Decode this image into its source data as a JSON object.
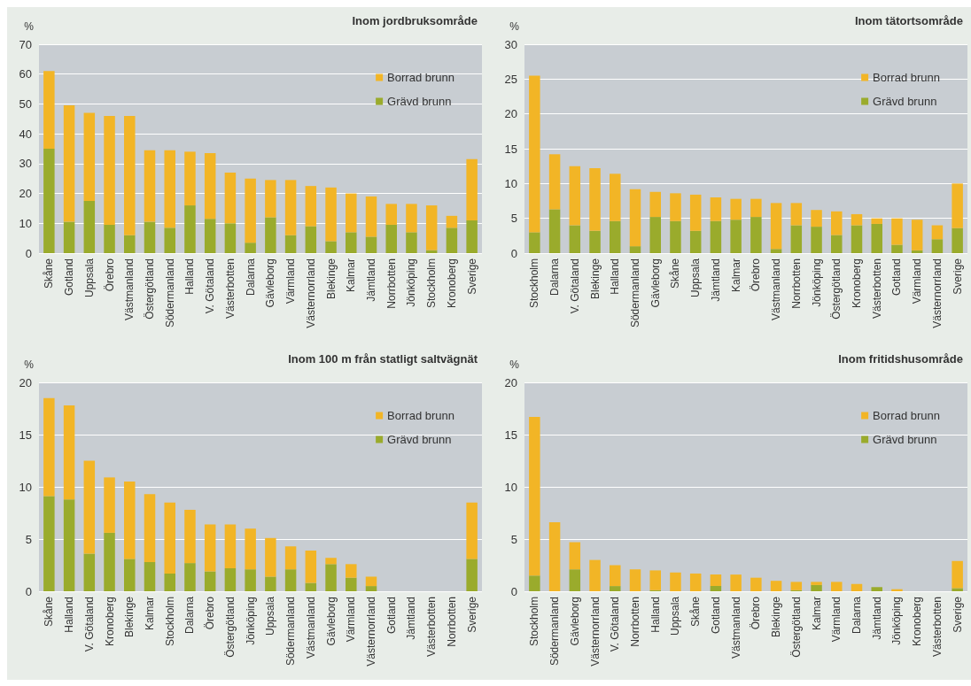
{
  "chart_data": [
    {
      "type": "bar",
      "title": "Inom jordbruksområde",
      "ylabel": "%",
      "stacked": true,
      "grid": "y",
      "legend": "top right",
      "ylim": [
        0,
        70
      ],
      "yticks": [
        0,
        10,
        20,
        30,
        40,
        50,
        60,
        70
      ],
      "categories": [
        "Skåne",
        "Gotland",
        "Uppsala",
        "Örebro",
        "Västmanland",
        "Östergötland",
        "Södermanland",
        "Halland",
        "V. Götaland",
        "Västerbotten",
        "Dalarna",
        "Gävleborg",
        "Värmland",
        "Västernorrland",
        "Blekinge",
        "Kalmar",
        "Jämtland",
        "Norrbotten",
        "Jönköping",
        "Stockholm",
        "Kronoberg",
        "Sverige"
      ],
      "series": [
        {
          "name": "Grävd brunn",
          "color": "#9aab2c",
          "values": [
            35,
            10.5,
            17.5,
            9.5,
            6,
            10.5,
            8.5,
            16,
            11.5,
            10,
            3.5,
            12,
            6,
            9,
            4,
            7,
            5.5,
            9.5,
            7,
            1,
            8.5,
            11
          ]
        },
        {
          "name": "Borrad brunn",
          "color": "#f2b526",
          "values": [
            26,
            39,
            29.5,
            36.5,
            40,
            24,
            26,
            18,
            22,
            17,
            21.5,
            12.5,
            18.5,
            13.5,
            18,
            13,
            13.5,
            7,
            9.5,
            15,
            4,
            20.5
          ]
        }
      ]
    },
    {
      "type": "bar",
      "title": "Inom tätortsområde",
      "ylabel": "%",
      "stacked": true,
      "grid": "y",
      "legend": "top right",
      "ylim": [
        0,
        30
      ],
      "yticks": [
        0,
        5,
        10,
        15,
        20,
        25,
        30
      ],
      "categories": [
        "Stockholm",
        "Dalarna",
        "V. Götaland",
        "Blekinge",
        "Halland",
        "Södermanland",
        "Gävleborg",
        "Skåne",
        "Uppsala",
        "Jämtland",
        "Kalmar",
        "Örebro",
        "Västmanland",
        "Norrbotten",
        "Jönköping",
        "Östergötland",
        "Kronoberg",
        "Västerbotten",
        "Gotland",
        "Värmland",
        "Västernorrland",
        "Sverige"
      ],
      "series": [
        {
          "name": "Grävd brunn",
          "color": "#9aab2c",
          "values": [
            3,
            6.3,
            4,
            3.2,
            4.6,
            1,
            5.2,
            4.6,
            3.2,
            4.6,
            4.8,
            5.2,
            0.6,
            4,
            3.8,
            2.6,
            4,
            4.2,
            1.2,
            0.4,
            2,
            3.6
          ]
        },
        {
          "name": "Borrad brunn",
          "color": "#f2b526",
          "values": [
            22.5,
            7.9,
            8.5,
            9,
            6.8,
            8.2,
            3.6,
            4,
            5.2,
            3.4,
            3,
            2.6,
            6.6,
            3.2,
            2.4,
            3.4,
            1.6,
            0.8,
            3.8,
            4.4,
            2,
            6.4
          ]
        }
      ]
    },
    {
      "type": "bar",
      "title": "Inom 100 m från statligt saltvägnät",
      "ylabel": "%",
      "stacked": true,
      "grid": "y",
      "legend": "top right",
      "ylim": [
        0,
        20
      ],
      "yticks": [
        0,
        5,
        10,
        15,
        20
      ],
      "categories": [
        "Skåne",
        "Halland",
        "V. Götaland",
        "Kronoberg",
        "Blekinge",
        "Kalmar",
        "Stockholm",
        "Dalarna",
        "Örebro",
        "Östergötland",
        "Jönköping",
        "Uppsala",
        "Södermanland",
        "Västmanland",
        "Gävleborg",
        "Värmland",
        "Västernorrland",
        "Gotland",
        "Jämtland",
        "Västerbotten",
        "Norrbotten",
        "Sverige"
      ],
      "series": [
        {
          "name": "Grävd brunn",
          "color": "#9aab2c",
          "values": [
            9.1,
            8.8,
            3.6,
            5.6,
            3.1,
            2.8,
            1.7,
            2.7,
            1.9,
            2.2,
            2.1,
            1.4,
            2.1,
            0.8,
            2.6,
            1.3,
            0.5,
            0,
            0,
            0,
            0,
            3.1
          ]
        },
        {
          "name": "Borrad brunn",
          "color": "#f2b526",
          "values": [
            9.4,
            9,
            8.9,
            5.3,
            7.4,
            6.5,
            6.8,
            5.1,
            4.5,
            4.2,
            3.9,
            3.7,
            2.2,
            3.1,
            0.6,
            1.3,
            0.9,
            0,
            0,
            0,
            0,
            5.4
          ]
        }
      ]
    },
    {
      "type": "bar",
      "title": "Inom fritidshusområde",
      "ylabel": "%",
      "stacked": true,
      "grid": "y",
      "legend": "top right",
      "ylim": [
        0,
        20
      ],
      "yticks": [
        0,
        5,
        10,
        15,
        20
      ],
      "categories": [
        "Stockholm",
        "Södermanland",
        "Gävleborg",
        "Västernorrland",
        "V. Götaland",
        "Norrbotten",
        "Halland",
        "Uppsala",
        "Skåne",
        "Gotland",
        "Västmanland",
        "Örebro",
        "Blekinge",
        "Östergötland",
        "Kalmar",
        "Värmland",
        "Dalarna",
        "Jämtland",
        "Jönköping",
        "Kronoberg",
        "Västerbotten",
        "Sverige"
      ],
      "series": [
        {
          "name": "Grävd brunn",
          "color": "#9aab2c",
          "values": [
            1.5,
            0,
            2.1,
            0,
            0.5,
            0,
            0.1,
            0,
            0,
            0.5,
            0,
            0,
            0,
            0.1,
            0.6,
            0,
            0,
            0.4,
            0,
            0,
            0,
            0.3
          ]
        },
        {
          "name": "Borrad brunn",
          "color": "#f2b526",
          "values": [
            15.2,
            6.6,
            2.6,
            3,
            2,
            2.1,
            1.9,
            1.8,
            1.7,
            1.1,
            1.6,
            1.3,
            1,
            0.8,
            0.3,
            0.9,
            0.7,
            0,
            0.2,
            0,
            0,
            2.6
          ]
        }
      ]
    }
  ]
}
